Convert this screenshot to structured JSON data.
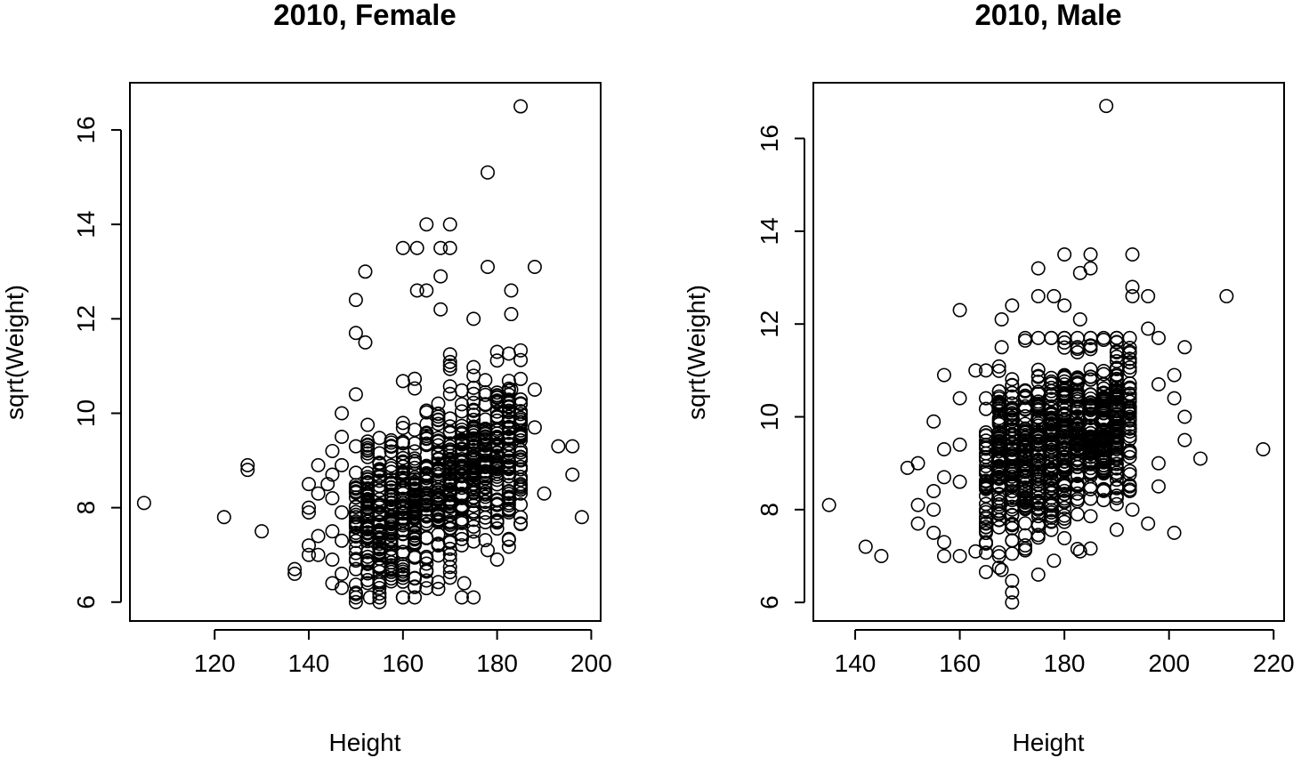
{
  "chart_data": [
    {
      "type": "scatter",
      "title": "2010, Female",
      "xlabel": "Height",
      "ylabel": "sqrt(Weight)",
      "xlim": [
        102,
        202
      ],
      "ylim": [
        5.6,
        17.0
      ],
      "xticks": [
        120,
        140,
        160,
        180,
        200
      ],
      "yticks": [
        6,
        8,
        10,
        12,
        14,
        16
      ],
      "grid": false,
      "points": [
        [
          105,
          8.1
        ],
        [
          122,
          7.8
        ],
        [
          127,
          8.9
        ],
        [
          127,
          8.8
        ],
        [
          130,
          7.5
        ],
        [
          137,
          6.6
        ],
        [
          137,
          6.7
        ],
        [
          140,
          8.5
        ],
        [
          140,
          8.0
        ],
        [
          140,
          7.9
        ],
        [
          140,
          7.2
        ],
        [
          140,
          7.0
        ],
        [
          142,
          8.9
        ],
        [
          142,
          8.3
        ],
        [
          142,
          7.0
        ],
        [
          142,
          7.4
        ],
        [
          144,
          8.5
        ],
        [
          145,
          9.2
        ],
        [
          145,
          8.7
        ],
        [
          145,
          8.2
        ],
        [
          145,
          7.5
        ],
        [
          145,
          6.9
        ],
        [
          145,
          6.4
        ],
        [
          147,
          10.0
        ],
        [
          147,
          9.5
        ],
        [
          147,
          8.9
        ],
        [
          147,
          7.9
        ],
        [
          147,
          7.3
        ],
        [
          147,
          6.6
        ],
        [
          147,
          6.3
        ],
        [
          150,
          11.7
        ],
        [
          150,
          10.4
        ],
        [
          150,
          9.3
        ],
        [
          150,
          8.4
        ],
        [
          150,
          6.0
        ],
        [
          150,
          6.2
        ],
        [
          152,
          13.0
        ],
        [
          152,
          11.5
        ],
        [
          150,
          12.4
        ],
        [
          160,
          13.5
        ],
        [
          163,
          13.5
        ],
        [
          163,
          12.6
        ],
        [
          165,
          14.0
        ],
        [
          165,
          12.6
        ],
        [
          168,
          13.5
        ],
        [
          170,
          14.0
        ],
        [
          170,
          13.5
        ],
        [
          168,
          12.9
        ],
        [
          168,
          12.2
        ],
        [
          173,
          6.4
        ],
        [
          178,
          15.1
        ],
        [
          185,
          16.5
        ],
        [
          178,
          13.1
        ],
        [
          183,
          12.6
        ],
        [
          183,
          12.1
        ],
        [
          188,
          13.1
        ],
        [
          175,
          12.0
        ],
        [
          180,
          11.3
        ],
        [
          183,
          10.5
        ],
        [
          188,
          10.5
        ],
        [
          188,
          9.7
        ],
        [
          185,
          9.9
        ],
        [
          180,
          6.9
        ],
        [
          178,
          7.1
        ],
        [
          185,
          9.0
        ],
        [
          185,
          8.5
        ],
        [
          185,
          8.3
        ],
        [
          190,
          8.3
        ],
        [
          193,
          9.3
        ],
        [
          196,
          9.3
        ],
        [
          196,
          8.7
        ],
        [
          198,
          7.8
        ],
        [
          160,
          6.1
        ],
        [
          155,
          6.0
        ],
        [
          153,
          6.1
        ]
      ],
      "dense_region": {
        "x": [
          150,
          185
        ],
        "y_center": [
          7.6,
          9.4
        ],
        "y_spread": 1.1
      }
    },
    {
      "type": "scatter",
      "title": "2010, Male",
      "xlabel": "Height",
      "ylabel": "sqrt(Weight)",
      "xlim": [
        132,
        222
      ],
      "ylim": [
        5.6,
        17.2
      ],
      "xticks": [
        140,
        160,
        180,
        200,
        220
      ],
      "yticks": [
        6,
        8,
        10,
        12,
        14,
        16
      ],
      "grid": false,
      "points": [
        [
          135,
          8.1
        ],
        [
          142,
          7.2
        ],
        [
          145,
          7.0
        ],
        [
          150,
          8.9
        ],
        [
          152,
          9.0
        ],
        [
          152,
          8.1
        ],
        [
          152,
          7.7
        ],
        [
          155,
          9.9
        ],
        [
          155,
          8.4
        ],
        [
          155,
          8.0
        ],
        [
          155,
          7.5
        ],
        [
          157,
          10.9
        ],
        [
          157,
          9.3
        ],
        [
          157,
          8.7
        ],
        [
          157,
          7.3
        ],
        [
          157,
          7.0
        ],
        [
          160,
          12.3
        ],
        [
          160,
          10.4
        ],
        [
          160,
          9.4
        ],
        [
          160,
          8.6
        ],
        [
          160,
          7.0
        ],
        [
          163,
          11.0
        ],
        [
          163,
          7.1
        ],
        [
          165,
          11.0
        ],
        [
          165,
          10.4
        ],
        [
          168,
          12.1
        ],
        [
          168,
          11.5
        ],
        [
          168,
          6.7
        ],
        [
          170,
          12.4
        ],
        [
          170,
          6.0
        ],
        [
          175,
          13.2
        ],
        [
          175,
          12.6
        ],
        [
          175,
          6.6
        ],
        [
          178,
          12.6
        ],
        [
          178,
          6.9
        ],
        [
          180,
          13.5
        ],
        [
          180,
          12.4
        ],
        [
          183,
          13.1
        ],
        [
          183,
          12.1
        ],
        [
          183,
          7.1
        ],
        [
          185,
          13.5
        ],
        [
          185,
          13.2
        ],
        [
          188,
          16.7
        ],
        [
          193,
          13.5
        ],
        [
          193,
          12.8
        ],
        [
          193,
          12.6
        ],
        [
          193,
          8.0
        ],
        [
          196,
          12.6
        ],
        [
          196,
          11.9
        ],
        [
          196,
          7.7
        ],
        [
          198,
          11.7
        ],
        [
          198,
          10.7
        ],
        [
          198,
          9.0
        ],
        [
          198,
          8.5
        ],
        [
          201,
          10.9
        ],
        [
          201,
          10.4
        ],
        [
          201,
          7.5
        ],
        [
          203,
          11.5
        ],
        [
          203,
          10.0
        ],
        [
          203,
          9.5
        ],
        [
          206,
          9.1
        ],
        [
          211,
          12.6
        ],
        [
          218,
          9.3
        ]
      ],
      "dense_region": {
        "x": [
          165,
          193
        ],
        "y_center": [
          8.9,
          10.0
        ],
        "y_spread": 1.2
      }
    }
  ]
}
